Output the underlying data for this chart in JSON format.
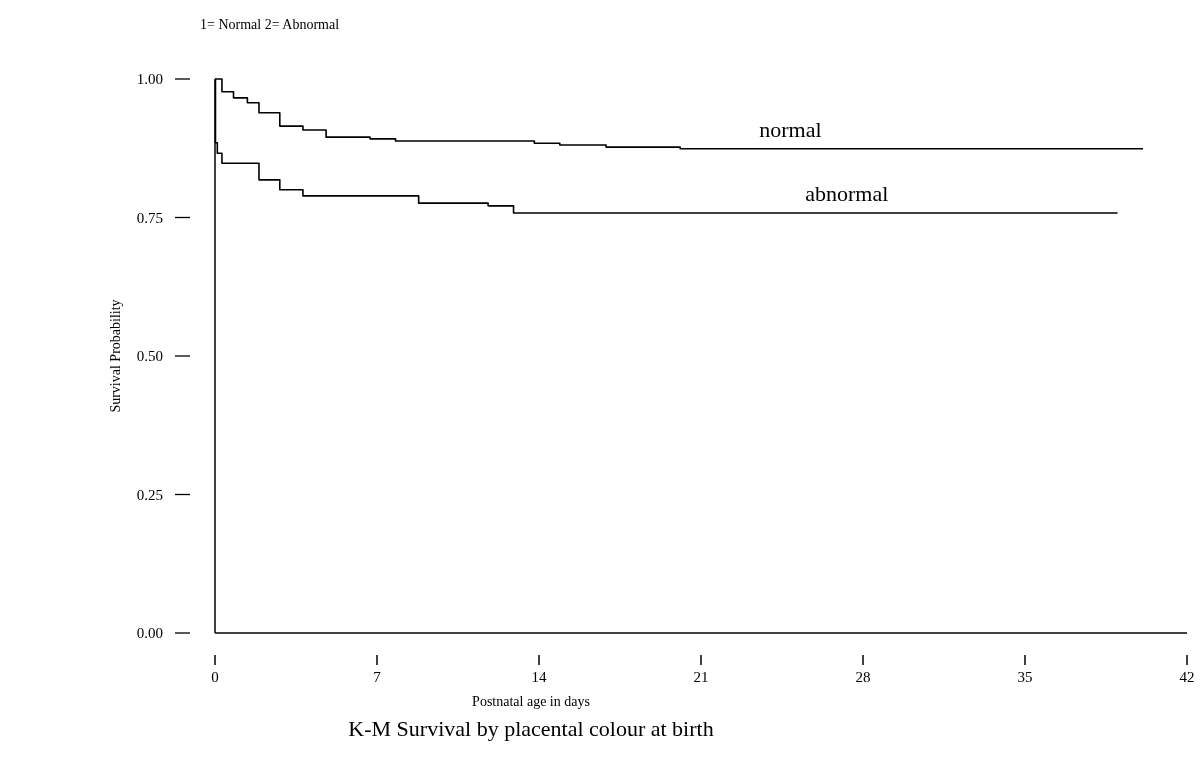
{
  "chart_data": {
    "type": "step",
    "title": "K-M Survival by placental colour at birth",
    "xlabel": "Postnatal age in days",
    "ylabel": "Survival Probability",
    "annotations": [
      "1= Normal 2= Abnormal"
    ],
    "xlim": [
      0,
      42
    ],
    "xticks": [
      0,
      7,
      14,
      21,
      28,
      35,
      42
    ],
    "ylim": [
      0,
      1
    ],
    "yticks": [
      {
        "value": 0,
        "label": "0.00"
      },
      {
        "value": 0.25,
        "label": "0.25"
      },
      {
        "value": 0.5,
        "label": "0.50"
      },
      {
        "value": 0.75,
        "label": "0.75"
      },
      {
        "value": 1,
        "label": "1.00"
      }
    ],
    "grid": false,
    "line_style": "solid",
    "series": [
      {
        "name": "normal",
        "color": "#000000",
        "x": [
          0,
          0.3,
          0.8,
          1.4,
          1.9,
          2.8,
          3.8,
          4.8,
          6.7,
          7.8,
          13.8,
          14.9,
          16.9,
          20.1,
          40.1
        ],
        "values": [
          1,
          0.977,
          0.966,
          0.957,
          0.939,
          0.915,
          0.908,
          0.895,
          0.892,
          0.888,
          0.884,
          0.881,
          0.877,
          0.874,
          0.874
        ]
      },
      {
        "name": "abnormal",
        "color": "#000000",
        "x": [
          0,
          0.02,
          0.1,
          0.3,
          1.9,
          2.8,
          3.8,
          8.8,
          11.8,
          12.9,
          39.0
        ],
        "values": [
          1,
          0.885,
          0.866,
          0.848,
          0.818,
          0.8,
          0.789,
          0.776,
          0.771,
          0.758,
          0.758
        ]
      }
    ]
  }
}
